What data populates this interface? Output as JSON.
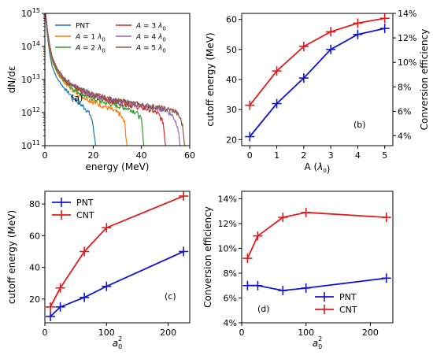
{
  "chart_data": [
    {
      "id": "a",
      "type": "line",
      "panel_label": "(a)",
      "xlabel": "energy (MeV)",
      "ylabel": "dN/dε",
      "xlim": [
        0,
        60
      ],
      "ylim": [
        100000000000.0,
        1000000000000000.0
      ],
      "yscale": "log",
      "xticks": [
        "0",
        "20",
        "40",
        "60"
      ],
      "yticks": [
        "10^11",
        "10^12",
        "10^13",
        "10^14",
        "10^15"
      ],
      "legend": {
        "placement": "top",
        "columns": 2
      },
      "series": [
        {
          "name": "PNT",
          "color": "#1f77b4",
          "x": [
            0.3,
            1,
            2,
            3,
            5,
            8,
            11,
            14,
            17,
            19,
            20,
            21
          ],
          "y": [
            800000000000000.0,
            220000000000000.0,
            60000000000000.0,
            25000000000000.0,
            11000000000000.0,
            5500000000000.0,
            3200000000000.0,
            2000000000000.0,
            1300000000000.0,
            800000000000.0,
            400000000000.0,
            100000000000.0
          ]
        },
        {
          "name": "A = 1 λ0",
          "color": "#ff7f0e",
          "x": [
            0.3,
            1,
            2,
            3,
            5,
            8,
            12,
            16,
            20,
            24,
            28,
            31,
            33,
            34
          ],
          "y": [
            900000000000000.0,
            280000000000000.0,
            80000000000000.0,
            35000000000000.0,
            16000000000000.0,
            8000000000000.0,
            4500000000000.0,
            3000000000000.0,
            2100000000000.0,
            1600000000000.0,
            1200000000000.0,
            900000000000.0,
            500000000000.0,
            100000000000.0
          ]
        },
        {
          "name": "A = 2 λ0",
          "color": "#2ca02c",
          "x": [
            0.3,
            1,
            2,
            3,
            5,
            8,
            12,
            16,
            20,
            25,
            30,
            35,
            38,
            40,
            41
          ],
          "y": [
            900000000000000.0,
            300000000000000.0,
            90000000000000.0,
            40000000000000.0,
            18000000000000.0,
            9000000000000.0,
            5000000000000.0,
            3500000000000.0,
            2600000000000.0,
            2000000000000.0,
            1600000000000.0,
            1300000000000.0,
            1000000000000.0,
            600000000000.0,
            100000000000.0
          ]
        },
        {
          "name": "A = 3 λ0",
          "color": "#d62728",
          "x": [
            0.3,
            1,
            2,
            3,
            5,
            8,
            12,
            16,
            20,
            25,
            30,
            35,
            40,
            44,
            47,
            49,
            50
          ],
          "y": [
            1000000000000000.0,
            320000000000000.0,
            100000000000000.0,
            45000000000000.0,
            20000000000000.0,
            10000000000000.0,
            6000000000000.0,
            4200000000000.0,
            3200000000000.0,
            2500000000000.0,
            2000000000000.0,
            1700000000000.0,
            1400000000000.0,
            1200000000000.0,
            900000000000.0,
            500000000000.0,
            100000000000.0
          ]
        },
        {
          "name": "A = 4 λ0",
          "color": "#9467bd",
          "x": [
            0.3,
            1,
            2,
            3,
            5,
            8,
            12,
            16,
            20,
            25,
            30,
            35,
            40,
            45,
            50,
            53,
            55,
            56
          ],
          "y": [
            1000000000000000.0,
            330000000000000.0,
            105000000000000.0,
            47000000000000.0,
            21000000000000.0,
            10500000000000.0,
            6300000000000.0,
            4400000000000.0,
            3400000000000.0,
            2700000000000.0,
            2200000000000.0,
            1900000000000.0,
            1600000000000.0,
            1400000000000.0,
            1200000000000.0,
            800000000000.0,
            400000000000.0,
            100000000000.0
          ]
        },
        {
          "name": "A = 5 λ0",
          "color": "#8c564b",
          "x": [
            0.3,
            1,
            2,
            3,
            5,
            8,
            12,
            16,
            20,
            25,
            30,
            35,
            40,
            45,
            50,
            54,
            56,
            57,
            58
          ],
          "y": [
            1000000000000000.0,
            340000000000000.0,
            110000000000000.0,
            49000000000000.0,
            22000000000000.0,
            11000000000000.0,
            6600000000000.0,
            4600000000000.0,
            3600000000000.0,
            2800000000000.0,
            2300000000000.0,
            2000000000000.0,
            1700000000000.0,
            1500000000000.0,
            1300000000000.0,
            1100000000000.0,
            700000000000.0,
            400000000000.0,
            100000000000.0
          ]
        }
      ]
    },
    {
      "id": "b",
      "type": "line",
      "panel_label": "(b)",
      "xlabel": "A (λ0)",
      "ylabel": "cutoff energy (MeV)",
      "ylabel_right": "Conversion efficiency",
      "xlim": [
        -0.3,
        5.3
      ],
      "ylim": [
        18,
        62
      ],
      "ylim_right": [
        3.2,
        14
      ],
      "xticks": [
        "0",
        "1",
        "2",
        "3",
        "4",
        "5"
      ],
      "yticks": [
        "20",
        "30",
        "40",
        "50",
        "60"
      ],
      "yticks_right": [
        "4%",
        "6%",
        "8%",
        "10%",
        "12%",
        "14%"
      ],
      "series": [
        {
          "name": "",
          "axis": "left",
          "color": "#1515d4",
          "x": [
            0,
            1,
            2,
            3,
            4,
            5
          ],
          "y": [
            21,
            32,
            40.5,
            50,
            55,
            57
          ]
        },
        {
          "name": "",
          "axis": "right",
          "color": "#e31a1c",
          "x": [
            0,
            1,
            2,
            3,
            4,
            5
          ],
          "y": [
            6.5,
            9.3,
            11.3,
            12.5,
            13.2,
            13.6
          ]
        }
      ]
    },
    {
      "id": "c",
      "type": "line",
      "panel_label": "(c)",
      "xlabel": "a0²",
      "ylabel": "cutoff energy (MeV)",
      "xlim": [
        0,
        235
      ],
      "ylim": [
        5,
        88
      ],
      "xticks": [
        "0",
        "100",
        "200"
      ],
      "yticks": [
        "20",
        "40",
        "60",
        "80"
      ],
      "legend": {
        "placement": "top-left"
      },
      "series": [
        {
          "name": "PNT",
          "color": "#1515d4",
          "x": [
            9,
            25,
            64,
            100,
            225
          ],
          "y": [
            9,
            15,
            21,
            28,
            50
          ]
        },
        {
          "name": "CNT",
          "color": "#e31a1c",
          "x": [
            9,
            25,
            64,
            100,
            225
          ],
          "y": [
            15,
            27,
            50,
            65,
            85
          ]
        }
      ]
    },
    {
      "id": "d",
      "type": "line",
      "panel_label": "(d)",
      "xlabel": "a0²",
      "ylabel": "Conversion efficiency",
      "xlim": [
        0,
        235
      ],
      "ylim": [
        4,
        14.6
      ],
      "xticks": [
        "0",
        "100",
        "200"
      ],
      "yticks": [
        "4%",
        "6%",
        "8%",
        "10%",
        "12%",
        "14%"
      ],
      "legend": {
        "placement": "lower-right"
      },
      "series": [
        {
          "name": "PNT",
          "color": "#1515d4",
          "x": [
            9,
            25,
            64,
            100,
            225
          ],
          "y": [
            7.0,
            7.0,
            6.6,
            6.8,
            7.6
          ]
        },
        {
          "name": "CNT",
          "color": "#e31a1c",
          "x": [
            9,
            25,
            64,
            100,
            225
          ],
          "y": [
            9.2,
            11.0,
            12.5,
            12.9,
            12.5
          ]
        }
      ]
    }
  ]
}
